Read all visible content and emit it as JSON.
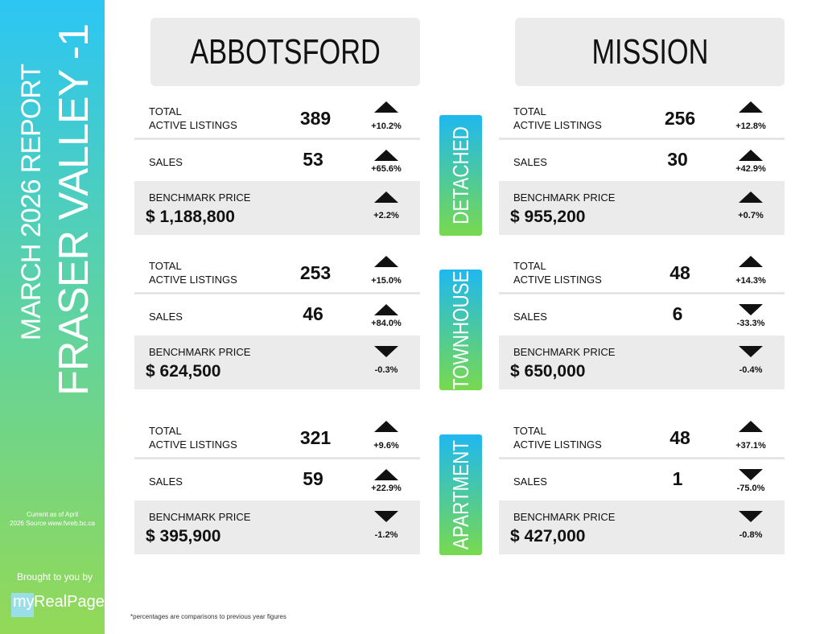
{
  "sidebar": {
    "report": "MARCH 2026 REPORT",
    "region": "FRASER VALLEY -1",
    "note": [
      "Current as of April",
      "2026 Source www.fvreb.bc.ca"
    ],
    "brought": "Brought to you by",
    "logo_my": "my",
    "logo_brand": "RealPage"
  },
  "labels": {
    "total": "TOTAL",
    "active": "ACTIVE LISTINGS",
    "sales": "SALES",
    "benchmark": "BENCHMARK PRICE"
  },
  "property_types": [
    "DETACHED",
    "TOWNHOUSE",
    "APARTMENT"
  ],
  "cities": [
    {
      "name": "ABBOTSFORD",
      "sections": [
        {
          "listings": "389",
          "listings_change": "+10.2%",
          "sales": "53",
          "sales_change": "+65.6%",
          "price": "$ 1,188,800",
          "price_change": "+2.2%"
        },
        {
          "listings": "253",
          "listings_change": "+15.0%",
          "sales": "46",
          "sales_change": "+84.0%",
          "price": "$ 624,500",
          "price_change": "-0.3%"
        },
        {
          "listings": "321",
          "listings_change": "+9.6%",
          "sales": "59",
          "sales_change": "+22.9%",
          "price": "$ 395,900",
          "price_change": "-1.2%"
        }
      ]
    },
    {
      "name": "MISSION",
      "sections": [
        {
          "listings": "256",
          "listings_change": "+12.8%",
          "sales": "30",
          "sales_change": "+42.9%",
          "price": "$ 955,200",
          "price_change": "+0.7%"
        },
        {
          "listings": "48",
          "listings_change": "+14.3%",
          "sales": "6",
          "sales_change": "-33.3%",
          "price": "$ 650,000",
          "price_change": "-0.4%"
        },
        {
          "listings": "48",
          "listings_change": "+37.1%",
          "sales": "1",
          "sales_change": "-75.0%",
          "price": "$ 427,000",
          "price_change": "-0.8%"
        }
      ]
    }
  ],
  "footnote": "*percentages are comparisons to previous year figures"
}
